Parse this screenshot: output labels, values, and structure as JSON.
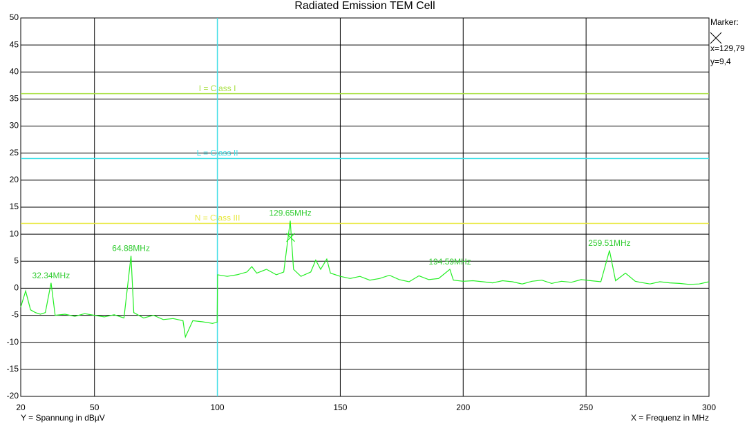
{
  "chart_data": {
    "type": "line",
    "title": "Radiated Emission TEM Cell",
    "y_label": "Y = Spannung in dBµV",
    "x_label": "X = Frequenz in MHz",
    "xlim": [
      20,
      300
    ],
    "ylim": [
      -20,
      50
    ],
    "xticks": [
      20,
      50,
      100,
      150,
      200,
      250,
      300
    ],
    "yticks": [
      -20,
      -15,
      -10,
      -5,
      0,
      5,
      10,
      15,
      20,
      25,
      30,
      35,
      40,
      45,
      50
    ],
    "grid": true,
    "series": [
      {
        "color": "#22ee22",
        "x": [
          20,
          22,
          24,
          26,
          28,
          30,
          32.34,
          34,
          38,
          42,
          46,
          50,
          54,
          58,
          62,
          64.88,
          66,
          70,
          74,
          78,
          82,
          86,
          87,
          90,
          94,
          98,
          99.9,
          100.1,
          104,
          108,
          112,
          114,
          116,
          120,
          124,
          127,
          129.65,
          131,
          134,
          138,
          140,
          142,
          144.5,
          146,
          150,
          154,
          158,
          162,
          166,
          170,
          174,
          178,
          182,
          186,
          190,
          194.59,
          196,
          200,
          204,
          208,
          212,
          216,
          220,
          224,
          228,
          232,
          236,
          240,
          244,
          248,
          252,
          256,
          259.51,
          262,
          266,
          270,
          272,
          276,
          280,
          284,
          288,
          292,
          296,
          300
        ],
        "values": [
          -3.5,
          -0.5,
          -4,
          -4.5,
          -4.8,
          -4.5,
          1,
          -5,
          -4.8,
          -5.2,
          -4.7,
          -5,
          -5.3,
          -4.9,
          -5.5,
          6,
          -4.5,
          -5.5,
          -5,
          -5.8,
          -5.6,
          -6,
          -9,
          -6,
          -6.2,
          -6.5,
          -6.3,
          2.5,
          2.2,
          2.5,
          3,
          4,
          2.8,
          3.5,
          2.5,
          3.0,
          12.5,
          3.5,
          2.2,
          3.0,
          5.2,
          3.5,
          5.4,
          2.8,
          2.2,
          1.8,
          2.2,
          1.5,
          1.8,
          2.4,
          1.6,
          1.2,
          2.3,
          1.6,
          1.8,
          3.5,
          1.5,
          1.3,
          1.4,
          1.2,
          1.0,
          1.4,
          1.2,
          0.8,
          1.3,
          1.5,
          0.9,
          1.3,
          1.1,
          1.6,
          1.4,
          1.2,
          7,
          1.4,
          2.8,
          1.3,
          1.1,
          0.8,
          1.2,
          1.0,
          0.9,
          0.7,
          0.8,
          1.2
        ]
      }
    ],
    "limits": [
      {
        "name": "I = Class I",
        "value": 36,
        "color": "#a8e040"
      },
      {
        "name": "L = Class II",
        "value": 24,
        "color": "#40e0e8"
      },
      {
        "name": "N = Class III",
        "value": 12,
        "color": "#e8e840"
      }
    ],
    "cursor_x": 100,
    "cursor_color": "#40e0e8",
    "annotations": [
      {
        "x": 32.34,
        "y": 1,
        "label": "32.34MHz"
      },
      {
        "x": 64.88,
        "y": 6,
        "label": "64.88MHz"
      },
      {
        "x": 129.65,
        "y": 12.5,
        "label": "129.65MHz"
      },
      {
        "x": 194.59,
        "y": 3.5,
        "label": "194.59MHz"
      },
      {
        "x": 259.51,
        "y": 7,
        "label": "259.51MHz"
      }
    ],
    "annotation_color": "#33cc33",
    "marker": {
      "title": "Marker:",
      "x": 129.79,
      "y": 9.4,
      "x_label": "x=129,79",
      "y_label": "y=9,4"
    }
  }
}
